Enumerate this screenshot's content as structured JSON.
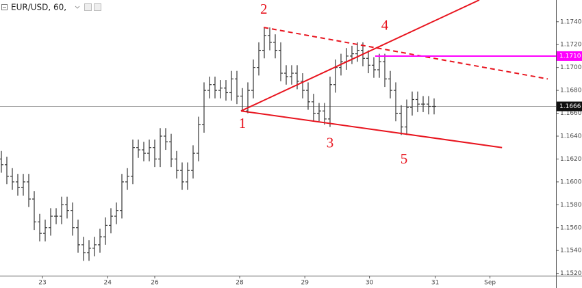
{
  "chart_data": {
    "type": "ohlc",
    "title": "EUR/USD, 60,",
    "bar_color": "#333333",
    "open": [
      1.162,
      1.1615,
      1.1605,
      1.16,
      1.1595,
      1.16,
      1.1585,
      1.1565,
      1.1555,
      1.156,
      1.157,
      1.157,
      1.158,
      1.1575,
      1.156,
      1.1545,
      1.1538,
      1.1542,
      1.1545,
      1.1552,
      1.1562,
      1.157,
      1.1575,
      1.16,
      1.1605,
      1.163,
      1.1628,
      1.1625,
      1.163,
      1.162,
      1.164,
      1.1635,
      1.162,
      1.161,
      1.16,
      1.161,
      1.1625,
      1.165,
      1.168,
      1.1685,
      1.168,
      1.1682,
      1.1678,
      1.169,
      1.1675,
      1.1662,
      1.168,
      1.17,
      1.1715,
      1.1728,
      1.1722,
      1.1715,
      1.1695,
      1.1692,
      1.1695,
      1.1688,
      1.168,
      1.167,
      1.166,
      1.1662,
      1.1655,
      1.1685,
      1.17,
      1.1705,
      1.171,
      1.1712,
      1.1715,
      1.1708,
      1.1702,
      1.1698,
      1.1705,
      1.169,
      1.168,
      1.166,
      1.1648,
      1.1665,
      1.1672,
      1.1668,
      1.1668,
      1.1666
    ],
    "high": [
      1.1627,
      1.1622,
      1.1612,
      1.1607,
      1.1607,
      1.1607,
      1.1592,
      1.1572,
      1.1567,
      1.1577,
      1.1577,
      1.1587,
      1.1587,
      1.1582,
      1.1567,
      1.1552,
      1.1549,
      1.1552,
      1.1559,
      1.1569,
      1.1577,
      1.1582,
      1.1607,
      1.1612,
      1.1637,
      1.1637,
      1.1635,
      1.1637,
      1.1637,
      1.1647,
      1.1647,
      1.1642,
      1.1627,
      1.1617,
      1.1617,
      1.1632,
      1.1657,
      1.1687,
      1.1692,
      1.1692,
      1.1689,
      1.1689,
      1.1697,
      1.1697,
      1.1682,
      1.1687,
      1.1707,
      1.1722,
      1.1735,
      1.1735,
      1.1729,
      1.1722,
      1.1702,
      1.1702,
      1.1702,
      1.1695,
      1.1687,
      1.1677,
      1.1669,
      1.1669,
      1.1692,
      1.1707,
      1.1712,
      1.1717,
      1.1719,
      1.1722,
      1.1722,
      1.1715,
      1.1709,
      1.1712,
      1.1712,
      1.1697,
      1.1687,
      1.1667,
      1.1672,
      1.1679,
      1.1679,
      1.1675,
      1.1675,
      1.1673
    ],
    "low": [
      1.1608,
      1.1598,
      1.1593,
      1.1588,
      1.1588,
      1.1578,
      1.1558,
      1.1548,
      1.1548,
      1.1553,
      1.1563,
      1.1563,
      1.1568,
      1.1553,
      1.1538,
      1.1531,
      1.1531,
      1.1535,
      1.1538,
      1.1545,
      1.1555,
      1.1563,
      1.1568,
      1.1593,
      1.1598,
      1.1621,
      1.1618,
      1.1618,
      1.1613,
      1.1613,
      1.1628,
      1.1613,
      1.1603,
      1.1593,
      1.1593,
      1.1603,
      1.1618,
      1.1643,
      1.1673,
      1.1673,
      1.1673,
      1.1671,
      1.1671,
      1.1668,
      1.1662,
      1.166,
      1.1673,
      1.1693,
      1.1708,
      1.1715,
      1.1708,
      1.1688,
      1.1685,
      1.1685,
      1.1681,
      1.1673,
      1.1663,
      1.1653,
      1.1653,
      1.165,
      1.1648,
      1.1678,
      1.1693,
      1.1698,
      1.1703,
      1.1705,
      1.1701,
      1.1695,
      1.1691,
      1.1691,
      1.1683,
      1.1673,
      1.1653,
      1.1641,
      1.1641,
      1.1658,
      1.1661,
      1.1661,
      1.1659,
      1.1659
    ],
    "close": [
      1.1615,
      1.1605,
      1.16,
      1.1595,
      1.16,
      1.1585,
      1.1565,
      1.1555,
      1.156,
      1.157,
      1.157,
      1.158,
      1.1575,
      1.156,
      1.1545,
      1.1538,
      1.1542,
      1.1545,
      1.1552,
      1.1562,
      1.157,
      1.1575,
      1.16,
      1.1605,
      1.163,
      1.1628,
      1.1625,
      1.163,
      1.162,
      1.164,
      1.1635,
      1.162,
      1.161,
      1.16,
      1.161,
      1.1625,
      1.165,
      1.168,
      1.1685,
      1.168,
      1.1682,
      1.1678,
      1.169,
      1.1675,
      1.1662,
      1.168,
      1.17,
      1.1715,
      1.1728,
      1.1722,
      1.1715,
      1.1695,
      1.1692,
      1.1695,
      1.1688,
      1.168,
      1.167,
      1.166,
      1.1662,
      1.1655,
      1.1685,
      1.17,
      1.1705,
      1.171,
      1.1712,
      1.1715,
      1.1708,
      1.1702,
      1.1698,
      1.1705,
      1.169,
      1.168,
      1.166,
      1.1648,
      1.1665,
      1.1672,
      1.1668,
      1.1668,
      1.1666,
      1.1666
    ],
    "xlim": [
      -0.25,
      101.25
    ],
    "xticks": [
      {
        "value": 7.5,
        "label": "23"
      },
      {
        "value": 19.4,
        "label": "24"
      },
      {
        "value": 28,
        "label": "26"
      },
      {
        "value": 43.5,
        "label": "28"
      },
      {
        "value": 55.4,
        "label": "29"
      },
      {
        "value": 67.2,
        "label": "30"
      },
      {
        "value": 79.2,
        "label": "31"
      },
      {
        "value": 89.2,
        "label": "Sep"
      }
    ],
    "ylim": [
      1.1518,
      1.1759
    ],
    "yticks": [
      {
        "value": 1.152,
        "label": "1.1520"
      },
      {
        "value": 1.154,
        "label": "1.1540"
      },
      {
        "value": 1.156,
        "label": "1.1560"
      },
      {
        "value": 1.158,
        "label": "1.1580"
      },
      {
        "value": 1.16,
        "label": "1.1600"
      },
      {
        "value": 1.162,
        "label": "1.1620"
      },
      {
        "value": 1.164,
        "label": "1.1640"
      },
      {
        "value": 1.166,
        "label": "1.1660"
      },
      {
        "value": 1.168,
        "label": "1.1680"
      },
      {
        "value": 1.17,
        "label": "1.1700"
      },
      {
        "value": 1.172,
        "label": "1.1720"
      },
      {
        "value": 1.174,
        "label": "1.1740"
      }
    ],
    "trendlines": [
      {
        "x": [
          43.75,
          87.25
        ],
        "y": [
          1.1662,
          1.1759
        ],
        "color": "#e8141e",
        "dashed": false
      },
      {
        "x": [
          43.75,
          91.4
        ],
        "y": [
          1.1662,
          1.163
        ],
        "color": "#e8141e",
        "dashed": false
      },
      {
        "x": [
          47.9,
          99.75
        ],
        "y": [
          1.1735,
          1.169
        ],
        "color": "#e8141e",
        "dashed": true
      }
    ],
    "alert_line": {
      "x": 68.25,
      "value": 1.171,
      "label": "1.1710",
      "color": "#ff00ff"
    },
    "price_line": {
      "value": 1.1666,
      "label": "1.1666",
      "color": "#999999"
    },
    "annotations": [
      {
        "text": "1",
        "x": 44,
        "y": 1.165
      },
      {
        "text": "2",
        "x": 47.9,
        "y": 1.175
      },
      {
        "text": "3",
        "x": 60,
        "y": 1.1633
      },
      {
        "text": "4",
        "x": 70,
        "y": 1.1736
      },
      {
        "text": "5",
        "x": 73.5,
        "y": 1.1619
      }
    ]
  }
}
